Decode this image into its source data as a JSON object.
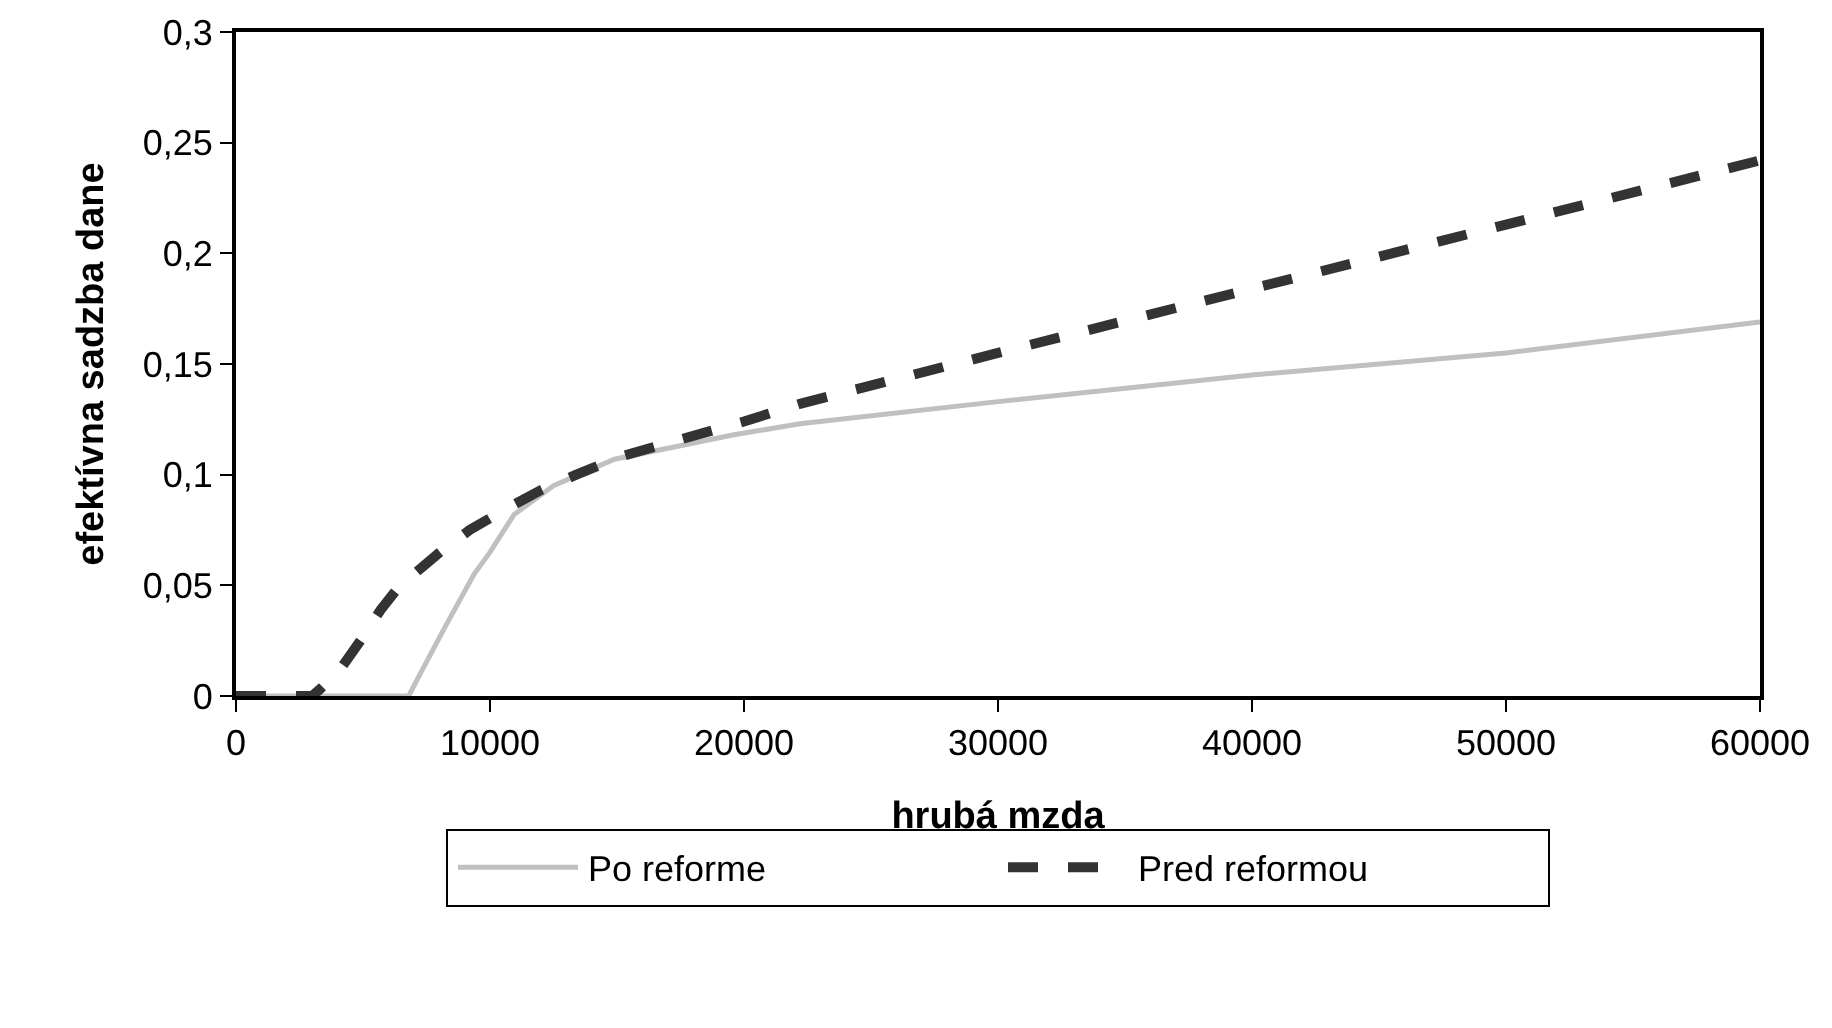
{
  "chart_data": {
    "type": "line",
    "xlabel": "hrubá mzda",
    "ylabel": "efektívna sadzba dane",
    "xlim": [
      0,
      60000
    ],
    "ylim": [
      0,
      0.3
    ],
    "xticks": [
      0,
      10000,
      20000,
      30000,
      40000,
      50000,
      60000
    ],
    "yticks": [
      0,
      {
        "value": 0.05,
        "label": "0,05"
      },
      {
        "value": 0.1,
        "label": "0,1"
      },
      {
        "value": 0.15,
        "label": "0,15"
      },
      {
        "value": 0.2,
        "label": "0,2"
      },
      {
        "value": 0.25,
        "label": "0,25"
      },
      {
        "value": 0.3,
        "label": "0,3"
      }
    ],
    "grid": false,
    "legend": "bottom",
    "marker": "none",
    "series": [
      {
        "name": "Po reforme",
        "color": "#c0c0c0",
        "line_style": "solid",
        "x": [
          0,
          3000,
          6800,
          7250,
          8270,
          9370,
          10000,
          10950,
          12500,
          14900,
          19600,
          22200,
          30000,
          40000,
          50000,
          60000
        ],
        "values": [
          0,
          0,
          0,
          0.01,
          0.032,
          0.055,
          0.065,
          0.082,
          0.095,
          0.107,
          0.118,
          0.123,
          0.133,
          0.145,
          0.155,
          0.169
        ]
      },
      {
        "name": "Pred reformou",
        "color": "#333333",
        "line_style": "dashed",
        "x": [
          0,
          3000,
          3300,
          4100,
          4900,
          5700,
          6460,
          7100,
          8030,
          9200,
          10550,
          12000,
          13400,
          15100,
          16900,
          20000,
          22200,
          30000,
          40000,
          50000,
          60000
        ],
        "values": [
          0,
          0,
          0.003,
          0.012,
          0.025,
          0.039,
          0.05,
          0.056,
          0.065,
          0.075,
          0.084,
          0.093,
          0.1,
          0.108,
          0.114,
          0.124,
          0.132,
          0.155,
          0.184,
          0.213,
          0.242
        ]
      }
    ]
  }
}
